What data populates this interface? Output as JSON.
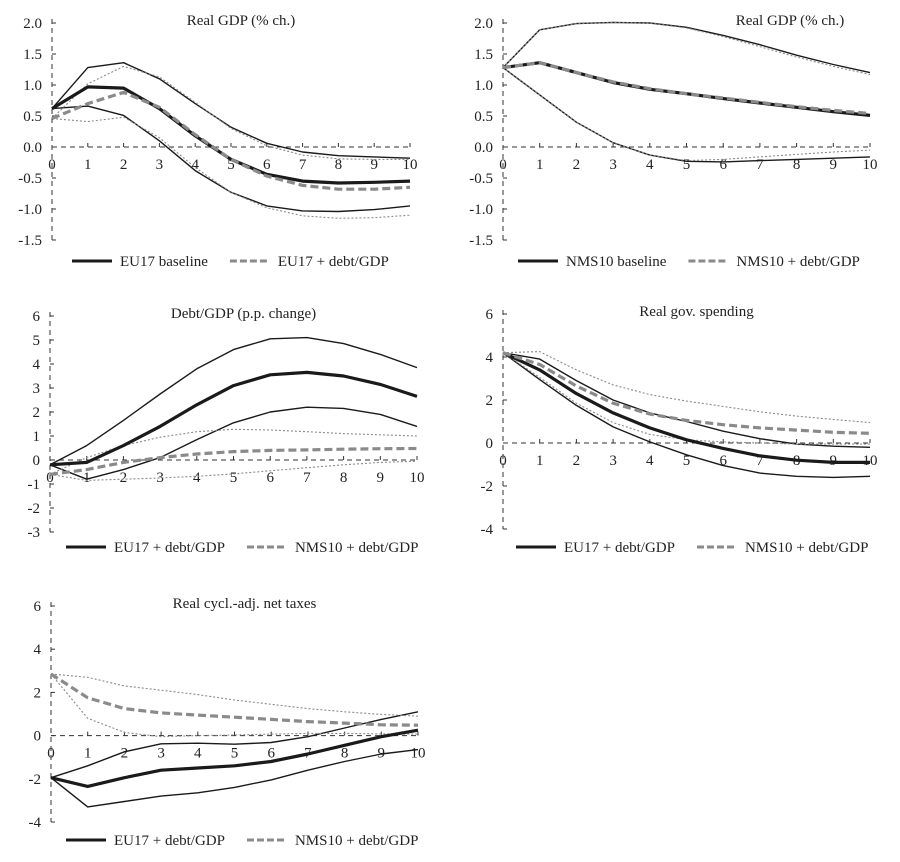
{
  "chart_data": [
    {
      "type": "line",
      "title": "Real GDP (% ch.)",
      "xlabel": "",
      "ylabel": "",
      "x": [
        0,
        1,
        2,
        3,
        4,
        5,
        6,
        7,
        8,
        9,
        10
      ],
      "ylim": [
        -1.5,
        2.0
      ],
      "yticks": [
        "2.0",
        "1.5",
        "1.0",
        "0.5",
        "0.0",
        "-0.5",
        "-1.0",
        "-1.5"
      ],
      "ytick_values": [
        2.0,
        1.5,
        1.0,
        0.5,
        0.0,
        -0.5,
        -1.0,
        -1.5
      ],
      "xticks": [
        "0",
        "1",
        "2",
        "3",
        "4",
        "5",
        "6",
        "7",
        "8",
        "9",
        "10"
      ],
      "title_position": "top-center",
      "legend": [
        {
          "label": "EU17 baseline",
          "style": "solid-black"
        },
        {
          "label": "EU17 + debt/GDP",
          "style": "dashed-gray"
        }
      ],
      "series": [
        {
          "name": "EU17 baseline",
          "role": "median",
          "style": "solid-black-thick",
          "values": [
            0.62,
            0.97,
            0.95,
            0.62,
            0.18,
            -0.2,
            -0.44,
            -0.55,
            -0.58,
            -0.57,
            -0.55
          ]
        },
        {
          "name": "EU17 baseline upper",
          "role": "band",
          "style": "solid-black-thin",
          "values": [
            0.62,
            1.28,
            1.36,
            1.1,
            0.7,
            0.32,
            0.06,
            -0.08,
            -0.14,
            -0.16,
            -0.18
          ]
        },
        {
          "name": "EU17 baseline lower",
          "role": "band",
          "style": "solid-black-thin",
          "values": [
            0.62,
            0.66,
            0.51,
            0.1,
            -0.38,
            -0.73,
            -0.95,
            -1.03,
            -1.04,
            -1.01,
            -0.95
          ]
        },
        {
          "name": "EU17 + debt/GDP",
          "role": "median",
          "style": "dashed-gray-thick",
          "values": [
            0.46,
            0.7,
            0.88,
            0.64,
            0.2,
            -0.2,
            -0.47,
            -0.62,
            -0.68,
            -0.68,
            -0.65
          ]
        },
        {
          "name": "EU17 + debt/GDP upper",
          "role": "band",
          "style": "dotted-gray",
          "values": [
            0.46,
            1.02,
            1.3,
            1.13,
            0.72,
            0.3,
            0.02,
            -0.13,
            -0.19,
            -0.2,
            -0.2
          ]
        },
        {
          "name": "EU17 + debt/GDP lower",
          "role": "band",
          "style": "dotted-gray",
          "values": [
            0.46,
            0.41,
            0.48,
            0.15,
            -0.33,
            -0.73,
            -0.98,
            -1.11,
            -1.15,
            -1.14,
            -1.1
          ]
        }
      ]
    },
    {
      "type": "line",
      "title": "Real GDP (% ch.)",
      "xlabel": "",
      "ylabel": "",
      "x": [
        0,
        1,
        2,
        3,
        4,
        5,
        6,
        7,
        8,
        9,
        10
      ],
      "ylim": [
        -1.5,
        2.0
      ],
      "yticks": [
        "2.0",
        "1.5",
        "1.0",
        "0.5",
        "0.0",
        "-0.5",
        "-1.0",
        "-1.5"
      ],
      "ytick_values": [
        2.0,
        1.5,
        1.0,
        0.5,
        0.0,
        -0.5,
        -1.0,
        -1.5
      ],
      "xticks": [
        "0",
        "1",
        "2",
        "3",
        "4",
        "5",
        "6",
        "7",
        "8",
        "9",
        "10"
      ],
      "title_position": "top-right",
      "legend": [
        {
          "label": "NMS10 baseline",
          "style": "solid-black"
        },
        {
          "label": "NMS10 + debt/GDP",
          "style": "dashed-gray"
        }
      ],
      "series": [
        {
          "name": "NMS10 baseline",
          "role": "median",
          "style": "solid-black-thick",
          "values": [
            1.28,
            1.36,
            1.2,
            1.04,
            0.93,
            0.86,
            0.78,
            0.71,
            0.64,
            0.57,
            0.51
          ]
        },
        {
          "name": "NMS10 baseline upper",
          "role": "band",
          "style": "solid-black-thin",
          "values": [
            1.28,
            1.89,
            1.99,
            2.01,
            2.0,
            1.93,
            1.8,
            1.65,
            1.48,
            1.33,
            1.2
          ]
        },
        {
          "name": "NMS10 baseline lower",
          "role": "band",
          "style": "solid-black-thin",
          "values": [
            1.28,
            0.84,
            0.4,
            0.07,
            -0.13,
            -0.23,
            -0.24,
            -0.22,
            -0.2,
            -0.18,
            -0.16
          ]
        },
        {
          "name": "NMS10 + debt/GDP",
          "role": "median",
          "style": "dashed-gray-thick",
          "values": [
            1.28,
            1.36,
            1.2,
            1.05,
            0.94,
            0.86,
            0.79,
            0.72,
            0.65,
            0.59,
            0.54
          ]
        },
        {
          "name": "NMS10 + debt/GDP upper",
          "role": "band",
          "style": "dotted-gray",
          "values": [
            1.28,
            1.89,
            1.99,
            2.01,
            2.0,
            1.92,
            1.78,
            1.62,
            1.45,
            1.3,
            1.17
          ]
        },
        {
          "name": "NMS10 + debt/GDP lower",
          "role": "band",
          "style": "dotted-gray",
          "values": [
            1.28,
            0.84,
            0.4,
            0.07,
            -0.13,
            -0.22,
            -0.2,
            -0.16,
            -0.12,
            -0.08,
            -0.05
          ]
        }
      ]
    },
    {
      "type": "line",
      "title": "Debt/GDP (p.p. change)",
      "xlabel": "",
      "ylabel": "",
      "x": [
        0,
        1,
        2,
        3,
        4,
        5,
        6,
        7,
        8,
        9,
        10
      ],
      "ylim": [
        -3,
        6
      ],
      "yticks": [
        "6",
        "5",
        "4",
        "3",
        "2",
        "1",
        "0",
        "-1",
        "-2",
        "-3"
      ],
      "ytick_values": [
        6,
        5,
        4,
        3,
        2,
        1,
        0,
        -1,
        -2,
        -3
      ],
      "xticks": [
        "0",
        "1",
        "2",
        "3",
        "4",
        "5",
        "6",
        "7",
        "8",
        "9",
        "10"
      ],
      "title_position": "top-center",
      "legend": [
        {
          "label": "EU17 + debt/GDP",
          "style": "solid-black"
        },
        {
          "label": "NMS10 + debt/GDP",
          "style": "dashed-gray"
        }
      ],
      "series": [
        {
          "name": "EU17 + debt/GDP",
          "role": "median",
          "style": "solid-black-thick",
          "values": [
            -0.2,
            -0.1,
            0.6,
            1.4,
            2.3,
            3.1,
            3.55,
            3.65,
            3.5,
            3.15,
            2.65
          ]
        },
        {
          "name": "EU17 + debt/GDP upper",
          "role": "band",
          "style": "solid-black-thin",
          "values": [
            -0.2,
            0.6,
            1.65,
            2.75,
            3.8,
            4.6,
            5.05,
            5.1,
            4.85,
            4.4,
            3.85
          ]
        },
        {
          "name": "EU17 + debt/GDP lower",
          "role": "band",
          "style": "solid-black-thin",
          "values": [
            -0.2,
            -0.8,
            -0.4,
            0.1,
            0.85,
            1.55,
            2.0,
            2.2,
            2.15,
            1.9,
            1.4
          ]
        },
        {
          "name": "NMS10 + debt/GDP",
          "role": "median",
          "style": "dashed-gray-thick",
          "values": [
            -0.6,
            -0.4,
            -0.1,
            0.1,
            0.25,
            0.35,
            0.4,
            0.42,
            0.45,
            0.47,
            0.48
          ]
        },
        {
          "name": "NMS10 + debt/GDP upper",
          "role": "band",
          "style": "dotted-gray",
          "values": [
            -0.6,
            0.1,
            0.6,
            0.95,
            1.18,
            1.28,
            1.25,
            1.18,
            1.1,
            1.05,
            1.0
          ]
        },
        {
          "name": "NMS10 + debt/GDP lower",
          "role": "band",
          "style": "dotted-gray",
          "values": [
            -0.6,
            -0.85,
            -0.8,
            -0.75,
            -0.68,
            -0.58,
            -0.45,
            -0.32,
            -0.2,
            -0.1,
            -0.05
          ]
        }
      ]
    },
    {
      "type": "line",
      "title": "Real gov. spending",
      "xlabel": "",
      "ylabel": "",
      "x": [
        0,
        1,
        2,
        3,
        4,
        5,
        6,
        7,
        8,
        9,
        10
      ],
      "ylim": [
        -4,
        6
      ],
      "yticks": [
        "6",
        "4",
        "2",
        "0",
        "-2",
        "-4"
      ],
      "ytick_values": [
        6,
        4,
        2,
        0,
        -2,
        -4
      ],
      "xticks": [
        "0",
        "1",
        "2",
        "3",
        "4",
        "5",
        "6",
        "7",
        "8",
        "9",
        "10"
      ],
      "title_position": "top-center",
      "legend": [
        {
          "label": "EU17 + debt/GDP",
          "style": "solid-black"
        },
        {
          "label": "NMS10 + debt/GDP",
          "style": "dashed-gray"
        }
      ],
      "series": [
        {
          "name": "EU17 + debt/GDP",
          "role": "median",
          "style": "solid-black-thick",
          "values": [
            4.2,
            3.4,
            2.3,
            1.4,
            0.7,
            0.15,
            -0.25,
            -0.6,
            -0.8,
            -0.9,
            -0.9
          ]
        },
        {
          "name": "EU17 + debt/GDP upper",
          "role": "band",
          "style": "solid-black-thin",
          "values": [
            4.2,
            3.9,
            2.9,
            2.0,
            1.4,
            1.0,
            0.55,
            0.2,
            -0.05,
            -0.15,
            -0.2
          ]
        },
        {
          "name": "EU17 + debt/GDP lower",
          "role": "band",
          "style": "solid-black-thin",
          "values": [
            4.2,
            2.95,
            1.75,
            0.75,
            0.05,
            -0.55,
            -1.05,
            -1.4,
            -1.55,
            -1.6,
            -1.55
          ]
        },
        {
          "name": "NMS10 + debt/GDP",
          "role": "median",
          "style": "dashed-gray-thick",
          "values": [
            4.2,
            3.65,
            2.65,
            1.85,
            1.35,
            1.05,
            0.85,
            0.7,
            0.6,
            0.5,
            0.45
          ]
        },
        {
          "name": "NMS10 + debt/GDP upper",
          "role": "band",
          "style": "dotted-gray",
          "values": [
            4.2,
            4.25,
            3.4,
            2.7,
            2.25,
            1.95,
            1.7,
            1.45,
            1.25,
            1.1,
            0.95
          ]
        },
        {
          "name": "NMS10 + debt/GDP lower",
          "role": "band",
          "style": "dotted-gray",
          "values": [
            4.2,
            3.05,
            1.85,
            0.95,
            0.4,
            0.15,
            0.05,
            0.0,
            -0.05,
            -0.05,
            -0.05
          ]
        }
      ]
    },
    {
      "type": "line",
      "title": "Real cycl.-adj. net taxes",
      "xlabel": "",
      "ylabel": "",
      "x": [
        0,
        1,
        2,
        3,
        4,
        5,
        6,
        7,
        8,
        9,
        10
      ],
      "ylim": [
        -4,
        6
      ],
      "yticks": [
        "6",
        "4",
        "2",
        "0",
        "-2",
        "-4"
      ],
      "ytick_values": [
        6,
        4,
        2,
        0,
        -2,
        -4
      ],
      "xticks": [
        "0",
        "1",
        "2",
        "3",
        "4",
        "5",
        "6",
        "7",
        "8",
        "9",
        "10"
      ],
      "title_position": "top-center",
      "legend": [
        {
          "label": "EU17 + debt/GDP",
          "style": "solid-black"
        },
        {
          "label": "NMS10 + debt/GDP",
          "style": "dashed-gray"
        }
      ],
      "series": [
        {
          "name": "EU17 + debt/GDP",
          "role": "median",
          "style": "solid-black-thick",
          "values": [
            -1.95,
            -2.35,
            -1.95,
            -1.6,
            -1.5,
            -1.4,
            -1.2,
            -0.85,
            -0.45,
            -0.05,
            0.25
          ]
        },
        {
          "name": "EU17 + debt/GDP upper",
          "role": "band",
          "style": "solid-black-thin",
          "values": [
            -1.95,
            -1.4,
            -0.75,
            -0.38,
            -0.35,
            -0.4,
            -0.32,
            -0.05,
            0.35,
            0.75,
            1.1
          ]
        },
        {
          "name": "EU17 + debt/GDP lower",
          "role": "band",
          "style": "solid-black-thin",
          "values": [
            -1.95,
            -3.3,
            -3.05,
            -2.8,
            -2.65,
            -2.4,
            -2.05,
            -1.6,
            -1.2,
            -0.85,
            -0.65
          ]
        },
        {
          "name": "NMS10 + debt/GDP",
          "role": "median",
          "style": "dashed-gray-thick",
          "values": [
            2.85,
            1.75,
            1.25,
            1.05,
            0.95,
            0.85,
            0.75,
            0.65,
            0.58,
            0.5,
            0.48
          ]
        },
        {
          "name": "NMS10 + debt/GDP upper",
          "role": "band",
          "style": "dotted-gray",
          "values": [
            2.85,
            2.7,
            2.3,
            2.1,
            1.9,
            1.65,
            1.45,
            1.25,
            1.1,
            0.98,
            0.9
          ]
        },
        {
          "name": "NMS10 + debt/GDP lower",
          "role": "band",
          "style": "dotted-gray",
          "values": [
            2.85,
            0.8,
            0.15,
            -0.05,
            0.0,
            0.03,
            0.07,
            0.1,
            0.1,
            0.08,
            0.07
          ]
        }
      ]
    }
  ]
}
